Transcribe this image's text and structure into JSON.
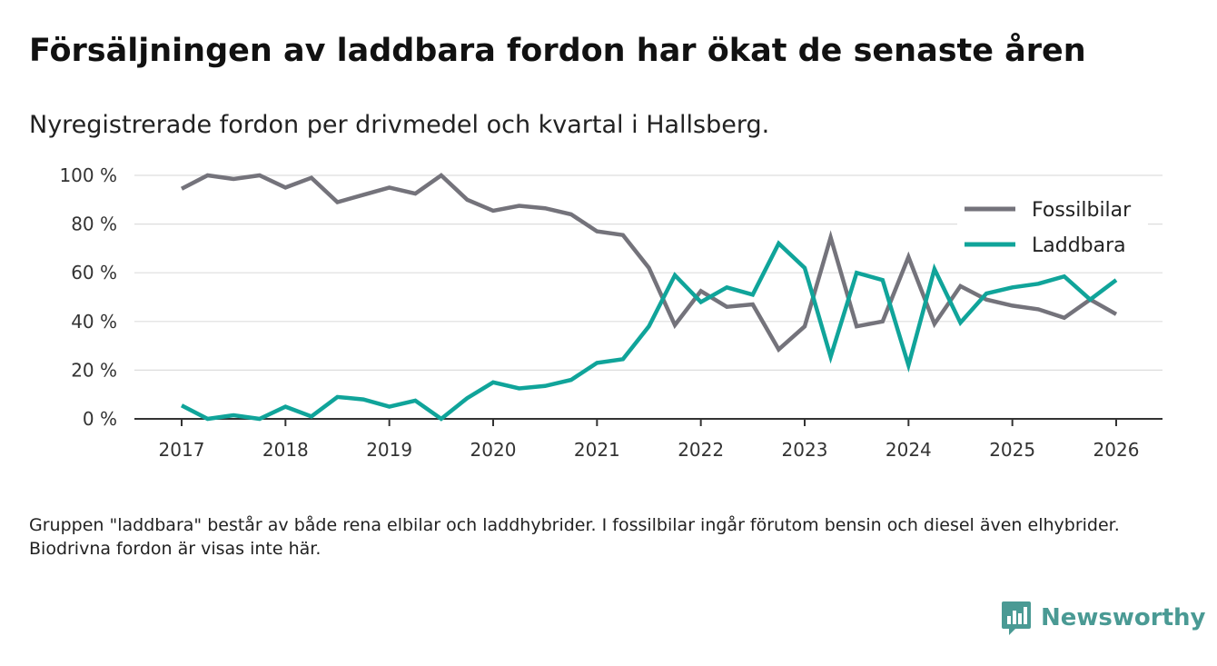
{
  "title": "Försäljningen av laddbara fordon har ökat de senaste åren",
  "subtitle": "Nyregistrerade fordon per drivmedel och kvartal i Hallsberg.",
  "note": "Gruppen \"laddbara\" består av både rena elbilar och laddhybrider. I fossilbilar ingår förutom bensin och diesel även elhybrider. Biodrivna fordon är visas inte här.",
  "brand": {
    "name": "Newsworthy",
    "icon": "newsworthy-logo-icon"
  },
  "colors": {
    "fossil": "#74737b",
    "laddbara": "#10a49a",
    "grid": "#dddddd",
    "axis": "#333333"
  },
  "chart_data": {
    "type": "line",
    "title": "Försäljningen av laddbara fordon har ökat de senaste åren",
    "xlabel": "",
    "ylabel": "",
    "ylim": [
      0,
      100
    ],
    "xlim": [
      2017,
      2026
    ],
    "yticks": [
      0,
      20,
      40,
      60,
      80,
      100
    ],
    "ytick_labels": [
      "0 %",
      "20 %",
      "40 %",
      "60 %",
      "80 %",
      "100 %"
    ],
    "xticks": [
      2017,
      2018,
      2019,
      2020,
      2021,
      2022,
      2023,
      2024,
      2025,
      2026
    ],
    "xtick_labels": [
      "2017",
      "2018",
      "2019",
      "2020",
      "2021",
      "2022",
      "2023",
      "2024",
      "2025",
      "2026"
    ],
    "grid": true,
    "legend_position": "top-right",
    "x": [
      2017.0,
      2017.25,
      2017.5,
      2017.75,
      2018.0,
      2018.25,
      2018.5,
      2018.75,
      2019.0,
      2019.25,
      2019.5,
      2019.75,
      2020.0,
      2020.25,
      2020.5,
      2020.75,
      2021.0,
      2021.25,
      2021.5,
      2021.75,
      2022.0,
      2022.25,
      2022.5,
      2022.75,
      2023.0,
      2023.25,
      2023.5,
      2023.75,
      2024.0,
      2024.25,
      2024.5,
      2024.75,
      2025.0,
      2025.25,
      2025.5,
      2025.75,
      2026.0
    ],
    "series": [
      {
        "name": "Fossilbilar",
        "color": "#74737b",
        "values": [
          94.5,
          100,
          98.5,
          100,
          95,
          99,
          89,
          92,
          95,
          92.5,
          100,
          90,
          85.5,
          87.5,
          86.5,
          84,
          77,
          75.5,
          62,
          38.5,
          52.5,
          46,
          47,
          28.5,
          38,
          74.5,
          38,
          40,
          66.5,
          39,
          54.5,
          49,
          46.5,
          45,
          41.5,
          49,
          43
        ]
      },
      {
        "name": "Laddbara",
        "color": "#10a49a",
        "values": [
          5.5,
          0,
          1.5,
          0,
          5,
          1,
          9,
          8,
          5,
          7.5,
          0,
          8.5,
          15,
          12.5,
          13.5,
          16,
          23,
          24.5,
          38,
          59,
          48,
          54,
          51,
          72,
          62,
          25.5,
          60,
          57,
          22,
          61.5,
          39.5,
          51.5,
          54,
          55.5,
          58.5,
          49,
          57
        ]
      }
    ]
  }
}
